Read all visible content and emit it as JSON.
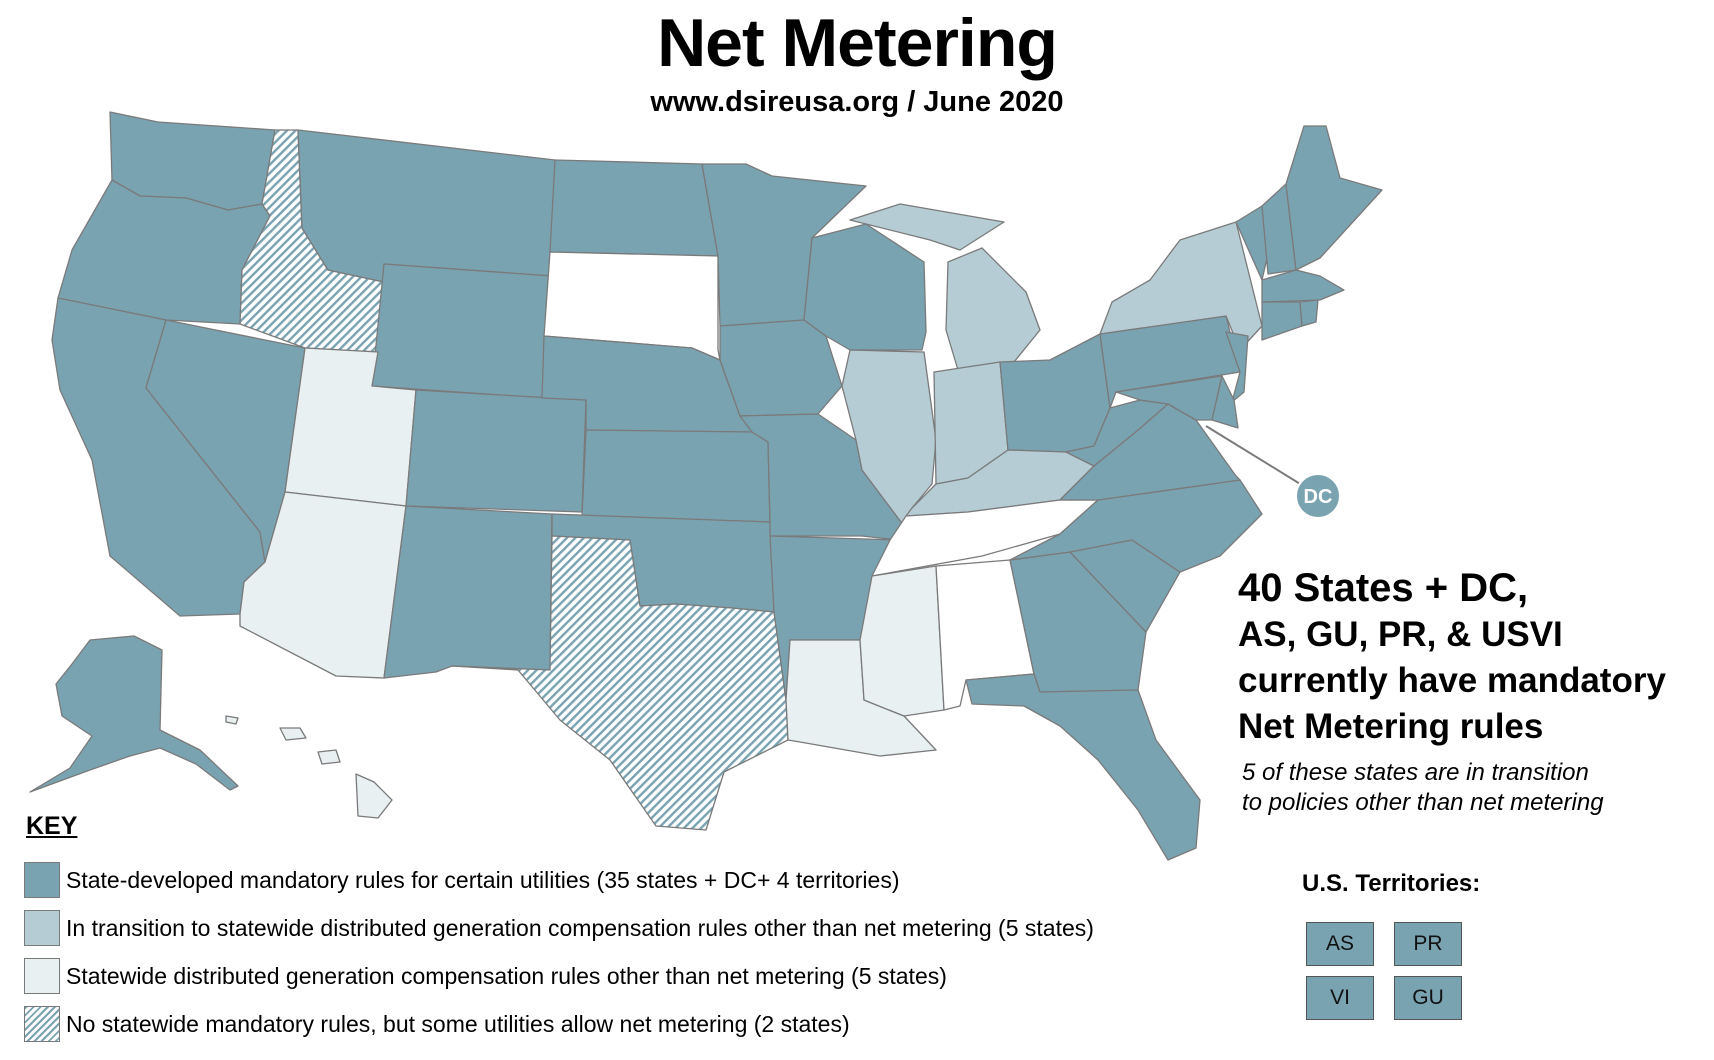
{
  "title": "Net Metering",
  "subtitle": "www.dsireusa.org / June 2020",
  "dc_label": "DC",
  "summary": {
    "line1": "40 States + DC,",
    "line2": "AS, GU, PR, & USVI",
    "line3": "currently have mandatory",
    "line4": "Net Metering rules",
    "note1": "5 of these states are in transition",
    "note2": "to policies other than net metering"
  },
  "key": {
    "title": "KEY",
    "items": [
      {
        "category": "mandatory",
        "color": "#7aa3b2",
        "label": "State-developed mandatory rules for certain utilities (35 states + DC+ 4 territories)"
      },
      {
        "category": "transition",
        "color": "#b5ccd5",
        "label": "In transition to statewide distributed generation compensation rules other than net metering (5 states)"
      },
      {
        "category": "other",
        "color": "#e9f0f2",
        "label": "Statewide distributed generation compensation rules other than net metering (5 states)"
      },
      {
        "category": "hatched",
        "color": "#7aa3b2",
        "label": "No statewide mandatory rules, but some utilities allow net metering (2 states)"
      }
    ]
  },
  "territories": {
    "title": "U.S. Territories:",
    "items": [
      "AS",
      "PR",
      "VI",
      "GU"
    ]
  },
  "state_categories": {
    "mandatory": [
      "WA",
      "OR",
      "CA",
      "NV",
      "MT",
      "WY",
      "CO",
      "NM",
      "ND",
      "NE",
      "KS",
      "OK",
      "MN",
      "IA",
      "MO",
      "AR",
      "WI",
      "OH",
      "WV",
      "VA",
      "NC",
      "SC",
      "GA",
      "FL",
      "PA",
      "NJ",
      "DE",
      "MD",
      "CT",
      "RI",
      "MA",
      "VT",
      "NH",
      "ME",
      "AK",
      "DC"
    ],
    "transition": [
      "MI",
      "IL",
      "IN",
      "KY",
      "NY"
    ],
    "other": [
      "UT",
      "AZ",
      "LA",
      "MS",
      "HI"
    ],
    "hatched": [
      "ID",
      "TX"
    ],
    "none": [
      "SD",
      "TN",
      "AL"
    ]
  }
}
